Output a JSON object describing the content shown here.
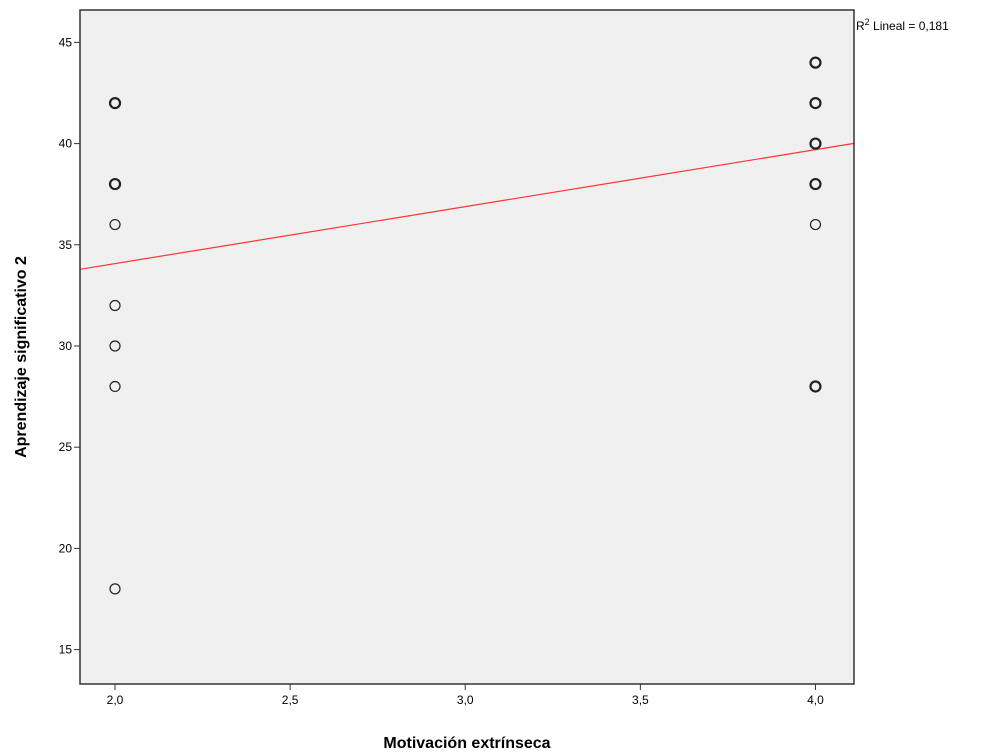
{
  "chart_data": {
    "type": "scatter",
    "title": "",
    "xlabel": "Motivación extrínseca",
    "ylabel": "Aprendizaje significativo 2",
    "xlim": [
      1.9,
      4.11
    ],
    "ylim": [
      13.3,
      46.6
    ],
    "x_ticks": [
      2.0,
      2.5,
      3.0,
      3.5,
      4.0
    ],
    "x_tick_labels": [
      "2,0",
      "2,5",
      "3,0",
      "3,5",
      "4,0"
    ],
    "y_ticks": [
      15,
      20,
      25,
      30,
      35,
      40,
      45
    ],
    "y_tick_labels": [
      "15",
      "20",
      "25",
      "30",
      "35",
      "40",
      "45"
    ],
    "grid": false,
    "plot_background": "#f0f0f0",
    "points": [
      {
        "x": 2.0,
        "y": 42,
        "count": 2
      },
      {
        "x": 2.0,
        "y": 38,
        "count": 2
      },
      {
        "x": 2.0,
        "y": 36,
        "count": 1
      },
      {
        "x": 2.0,
        "y": 32,
        "count": 1
      },
      {
        "x": 2.0,
        "y": 30,
        "count": 1
      },
      {
        "x": 2.0,
        "y": 28,
        "count": 1
      },
      {
        "x": 2.0,
        "y": 18,
        "count": 1
      },
      {
        "x": 4.0,
        "y": 44,
        "count": 2
      },
      {
        "x": 4.0,
        "y": 42,
        "count": 3
      },
      {
        "x": 4.0,
        "y": 40,
        "count": 3
      },
      {
        "x": 4.0,
        "y": 38,
        "count": 2
      },
      {
        "x": 4.0,
        "y": 36,
        "count": 1
      },
      {
        "x": 4.0,
        "y": 28,
        "count": 2
      }
    ],
    "fit_line": {
      "type": "linear",
      "color": "#ff3333",
      "y_at_2": 34.07,
      "y_at_4": 39.7
    },
    "fit_label": {
      "prefix": "R",
      "superscript": "2",
      "text": " Lineal = 0,181",
      "placement": "top-right"
    }
  }
}
